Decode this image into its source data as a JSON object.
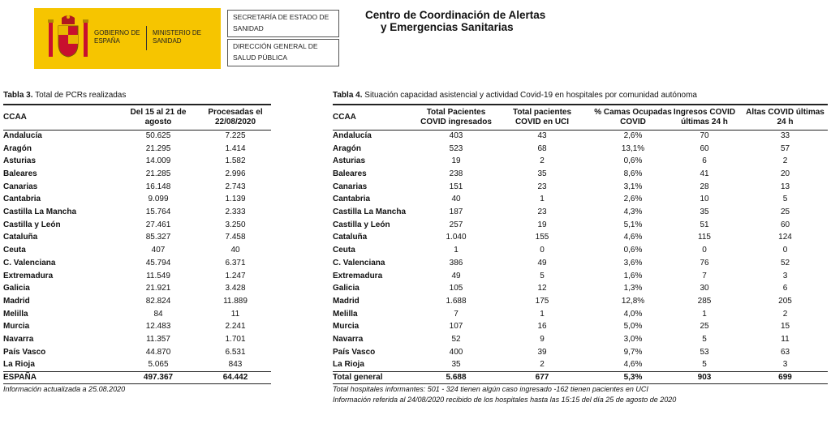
{
  "header": {
    "logo_left": "GOBIERNO DE ESPAÑA",
    "logo_right": "MINISTERIO DE SANIDAD",
    "box1": "SECRETARÍA DE ESTADO DE SANIDAD",
    "box2": "DIRECCIÓN GENERAL DE SALUD PÚBLICA",
    "title_line1": "Centro de Coordinación de Alertas",
    "title_line2": "y Emergencias Sanitarias"
  },
  "table3": {
    "label": "Tabla 3.",
    "title": " Total de PCRs realizadas",
    "columns": [
      "CCAA",
      "Del 15 al 21 de agosto",
      "Procesadas el 22/08/2020"
    ],
    "rows": [
      [
        "Andalucía",
        "50.625",
        "7.225"
      ],
      [
        "Aragón",
        "21.295",
        "1.414"
      ],
      [
        "Asturias",
        "14.009",
        "1.582"
      ],
      [
        "Baleares",
        "21.285",
        "2.996"
      ],
      [
        "Canarias",
        "16.148",
        "2.743"
      ],
      [
        "Cantabria",
        "9.099",
        "1.139"
      ],
      [
        "Castilla La Mancha",
        "15.764",
        "2.333"
      ],
      [
        "Castilla y León",
        "27.461",
        "3.250"
      ],
      [
        "Cataluña",
        "85.327",
        "7.458"
      ],
      [
        "Ceuta",
        "407",
        "40"
      ],
      [
        "C. Valenciana",
        "45.794",
        "6.371"
      ],
      [
        "Extremadura",
        "11.549",
        "1.247"
      ],
      [
        "Galicia",
        "21.921",
        "3.428"
      ],
      [
        "Madrid",
        "82.824",
        "11.889"
      ],
      [
        "Melilla",
        "84",
        "11"
      ],
      [
        "Murcia",
        "12.483",
        "2.241"
      ],
      [
        "Navarra",
        "11.357",
        "1.701"
      ],
      [
        "País Vasco",
        "44.870",
        "6.531"
      ],
      [
        "La Rioja",
        "5.065",
        "843"
      ]
    ],
    "total": [
      "ESPAÑA",
      "497.367",
      "64.442"
    ],
    "notes": [
      "Información actualizada a 25.08.2020"
    ]
  },
  "table4": {
    "label": "Tabla 4.",
    "title": " Situación capacidad asistencial y actividad Covid-19 en hospitales por comunidad autónoma",
    "columns": [
      "CCAA",
      "Total Pacientes COVID ingresados",
      "Total pacientes COVID en UCI",
      "% Camas Ocupadas COVID",
      "Ingresos COVID últimas 24 h",
      "Altas COVID últimas 24 h"
    ],
    "rows": [
      [
        "Andalucía",
        "403",
        "43",
        "2,6%",
        "70",
        "33"
      ],
      [
        "Aragón",
        "523",
        "68",
        "13,1%",
        "60",
        "57"
      ],
      [
        "Asturias",
        "19",
        "2",
        "0,6%",
        "6",
        "2"
      ],
      [
        "Baleares",
        "238",
        "35",
        "8,6%",
        "41",
        "20"
      ],
      [
        "Canarias",
        "151",
        "23",
        "3,1%",
        "28",
        "13"
      ],
      [
        "Cantabria",
        "40",
        "1",
        "2,6%",
        "10",
        "5"
      ],
      [
        "Castilla La Mancha",
        "187",
        "23",
        "4,3%",
        "35",
        "25"
      ],
      [
        "Castilla y León",
        "257",
        "19",
        "5,1%",
        "51",
        "60"
      ],
      [
        "Cataluña",
        "1.040",
        "155",
        "4,6%",
        "115",
        "124"
      ],
      [
        "Ceuta",
        "1",
        "0",
        "0,6%",
        "0",
        "0"
      ],
      [
        "C. Valenciana",
        "386",
        "49",
        "3,6%",
        "76",
        "52"
      ],
      [
        "Extremadura",
        "49",
        "5",
        "1,6%",
        "7",
        "3"
      ],
      [
        "Galicia",
        "105",
        "12",
        "1,3%",
        "30",
        "6"
      ],
      [
        "Madrid",
        "1.688",
        "175",
        "12,8%",
        "285",
        "205"
      ],
      [
        "Melilla",
        "7",
        "1",
        "4,0%",
        "1",
        "2"
      ],
      [
        "Murcia",
        "107",
        "16",
        "5,0%",
        "25",
        "15"
      ],
      [
        "Navarra",
        "52",
        "9",
        "3,0%",
        "5",
        "11"
      ],
      [
        "País Vasco",
        "400",
        "39",
        "9,7%",
        "53",
        "63"
      ],
      [
        "La Rioja",
        "35",
        "2",
        "4,6%",
        "5",
        "3"
      ]
    ],
    "total": [
      "Total general",
      "5.688",
      "677",
      "5,3%",
      "903",
      "699"
    ],
    "notes": [
      "Total hospitales informantes: 501 - 324 tienen algún caso ingresado -162 tienen pacientes en UCI",
      "Información referida al 24/08/2020 recibido de los hospitales hasta las 15:15 del día 25 de agosto de 2020"
    ]
  }
}
